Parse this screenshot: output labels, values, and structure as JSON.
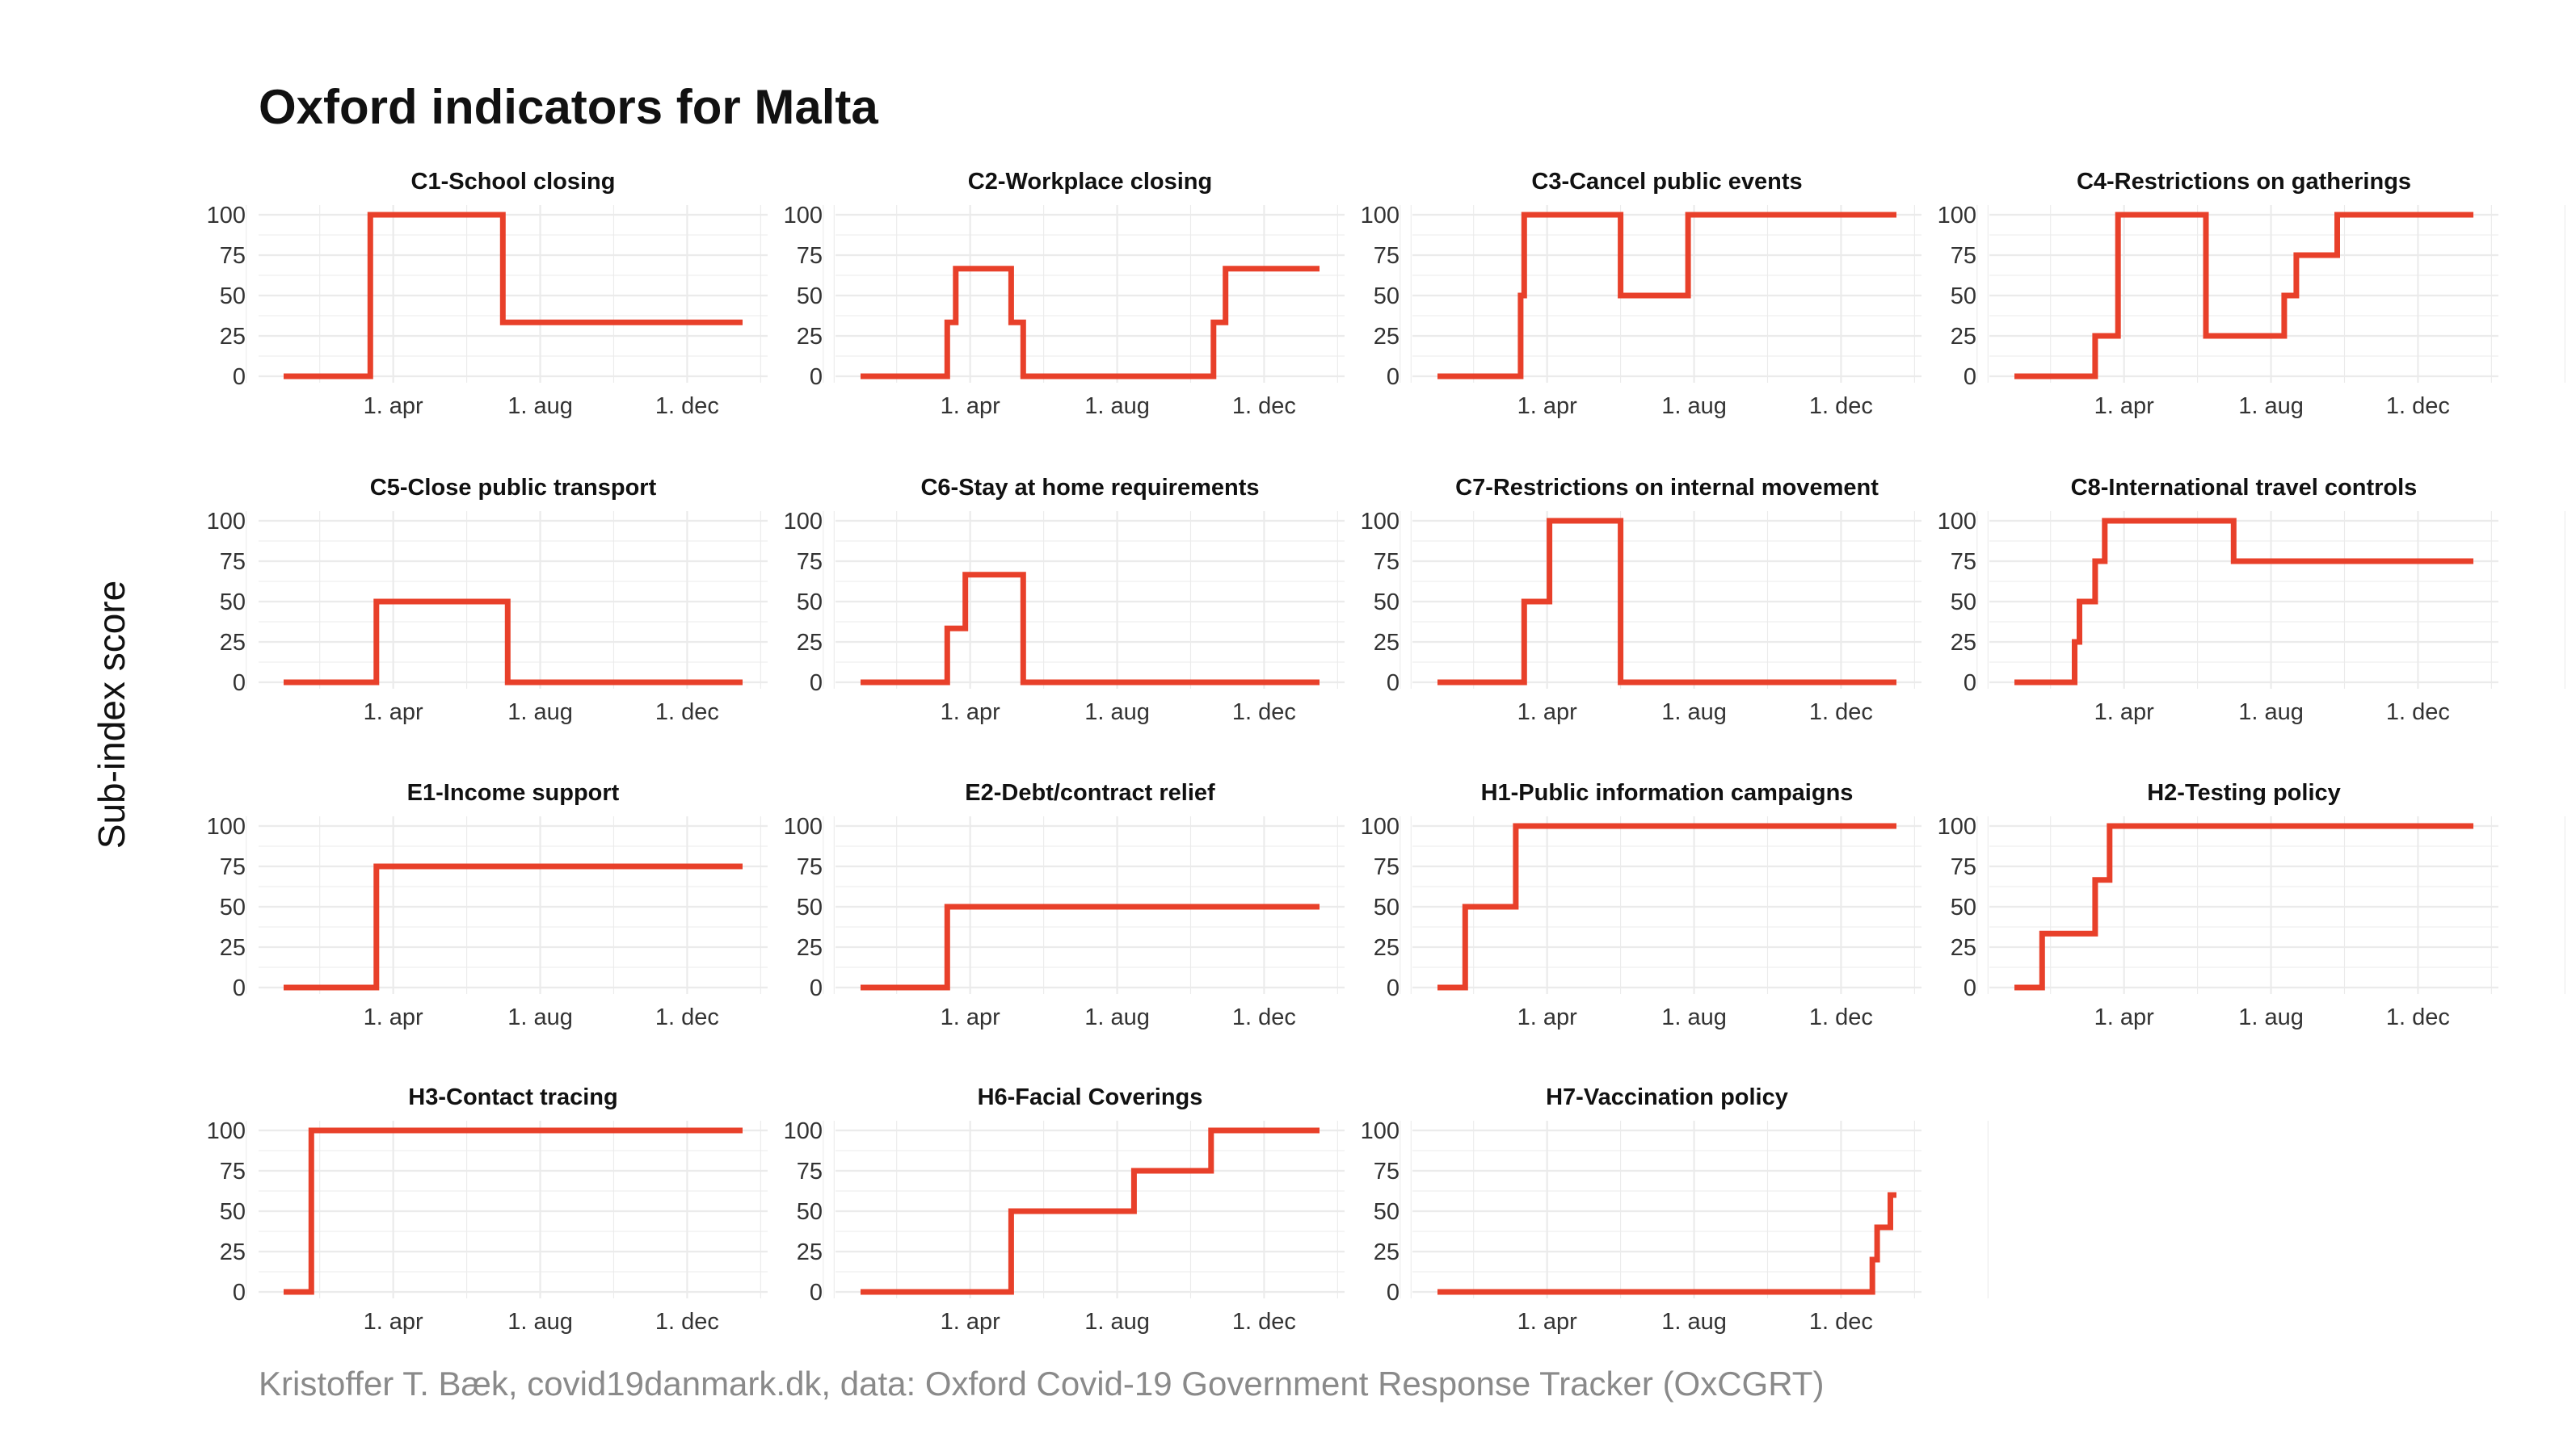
{
  "title": "Oxford indicators for Malta",
  "ylabel": "Sub-index score",
  "caption": "Kristoffer T. Bæk, covid19danmark.dk, data: Oxford Covid-19 Government Response Tracker (OxCGRT)",
  "colors": {
    "line": "#e8402a",
    "grid": "#ebebeb",
    "text": "#333333"
  },
  "chart_data": {
    "type": "line",
    "layout": "facet-grid-4-columns",
    "shared_axes": true,
    "ylabel": "Sub-index score",
    "x_range": [
      "2020-01-01",
      "2021-01-16"
    ],
    "ylim": [
      0,
      100
    ],
    "y_ticks": [
      0,
      25,
      50,
      75,
      100
    ],
    "x_ticks": [
      {
        "date": "2020-04-01",
        "label": "1. apr"
      },
      {
        "date": "2020-08-01",
        "label": "1. aug"
      },
      {
        "date": "2020-12-01",
        "label": "1. dec"
      }
    ],
    "grid": true,
    "panels": [
      {
        "name": "C1-School closing",
        "steps": [
          [
            "2020-01-01",
            0
          ],
          [
            "2020-03-13",
            100
          ],
          [
            "2020-07-01",
            33.33
          ],
          [
            "2021-01-16",
            33.33
          ]
        ]
      },
      {
        "name": "C2-Workplace closing",
        "steps": [
          [
            "2020-01-01",
            0
          ],
          [
            "2020-03-13",
            33.33
          ],
          [
            "2020-03-20",
            66.67
          ],
          [
            "2020-05-05",
            33.33
          ],
          [
            "2020-05-15",
            0
          ],
          [
            "2020-10-20",
            33.33
          ],
          [
            "2020-10-30",
            66.67
          ],
          [
            "2021-01-16",
            66.67
          ]
        ]
      },
      {
        "name": "C3-Cancel public events",
        "steps": [
          [
            "2020-01-01",
            0
          ],
          [
            "2020-03-10",
            50
          ],
          [
            "2020-03-13",
            100
          ],
          [
            "2020-06-01",
            50
          ],
          [
            "2020-07-27",
            100
          ],
          [
            "2021-01-16",
            100
          ]
        ]
      },
      {
        "name": "C4-Restrictions on gatherings",
        "steps": [
          [
            "2020-01-01",
            0
          ],
          [
            "2020-03-08",
            25
          ],
          [
            "2020-03-27",
            100
          ],
          [
            "2020-06-08",
            25
          ],
          [
            "2020-08-12",
            50
          ],
          [
            "2020-08-22",
            75
          ],
          [
            "2020-09-25",
            100
          ],
          [
            "2021-01-16",
            100
          ]
        ]
      },
      {
        "name": "C5-Close public transport",
        "steps": [
          [
            "2020-01-01",
            0
          ],
          [
            "2020-03-18",
            50
          ],
          [
            "2020-07-05",
            0
          ],
          [
            "2021-01-16",
            0
          ]
        ]
      },
      {
        "name": "C6-Stay at home requirements",
        "steps": [
          [
            "2020-01-01",
            0
          ],
          [
            "2020-03-13",
            33.33
          ],
          [
            "2020-03-28",
            66.67
          ],
          [
            "2020-05-15",
            0
          ],
          [
            "2021-01-16",
            0
          ]
        ]
      },
      {
        "name": "C7-Restrictions on internal movement",
        "steps": [
          [
            "2020-01-01",
            0
          ],
          [
            "2020-03-13",
            50
          ],
          [
            "2020-04-03",
            100
          ],
          [
            "2020-06-01",
            0
          ],
          [
            "2021-01-16",
            0
          ]
        ]
      },
      {
        "name": "C8-International travel controls",
        "steps": [
          [
            "2020-01-01",
            0
          ],
          [
            "2020-02-20",
            25
          ],
          [
            "2020-02-24",
            50
          ],
          [
            "2020-03-08",
            75
          ],
          [
            "2020-03-16",
            100
          ],
          [
            "2020-07-01",
            75
          ],
          [
            "2021-01-16",
            75
          ]
        ]
      },
      {
        "name": "E1-Income support",
        "steps": [
          [
            "2020-01-01",
            0
          ],
          [
            "2020-03-18",
            75
          ],
          [
            "2021-01-16",
            75
          ]
        ]
      },
      {
        "name": "E2-Debt/contract relief",
        "steps": [
          [
            "2020-01-01",
            0
          ],
          [
            "2020-03-13",
            50
          ],
          [
            "2021-01-16",
            50
          ]
        ]
      },
      {
        "name": "H1-Public information campaigns",
        "steps": [
          [
            "2020-01-01",
            0
          ],
          [
            "2020-01-24",
            50
          ],
          [
            "2020-03-06",
            100
          ],
          [
            "2021-01-16",
            100
          ]
        ]
      },
      {
        "name": "H2-Testing policy",
        "steps": [
          [
            "2020-01-01",
            0
          ],
          [
            "2020-01-24",
            33.33
          ],
          [
            "2020-03-08",
            66.67
          ],
          [
            "2020-03-20",
            100
          ],
          [
            "2021-01-16",
            100
          ]
        ]
      },
      {
        "name": "H3-Contact tracing",
        "steps": [
          [
            "2020-01-01",
            0
          ],
          [
            "2020-01-24",
            100
          ],
          [
            "2021-01-16",
            100
          ]
        ]
      },
      {
        "name": "H6-Facial Coverings",
        "steps": [
          [
            "2020-01-01",
            0
          ],
          [
            "2020-05-05",
            50
          ],
          [
            "2020-08-15",
            75
          ],
          [
            "2020-10-18",
            100
          ],
          [
            "2021-01-16",
            100
          ]
        ]
      },
      {
        "name": "H7-Vaccination policy",
        "steps": [
          [
            "2020-01-01",
            0
          ],
          [
            "2020-12-27",
            20
          ],
          [
            "2020-12-31",
            40
          ],
          [
            "2021-01-11",
            60
          ],
          [
            "2021-01-16",
            60
          ]
        ]
      }
    ]
  }
}
